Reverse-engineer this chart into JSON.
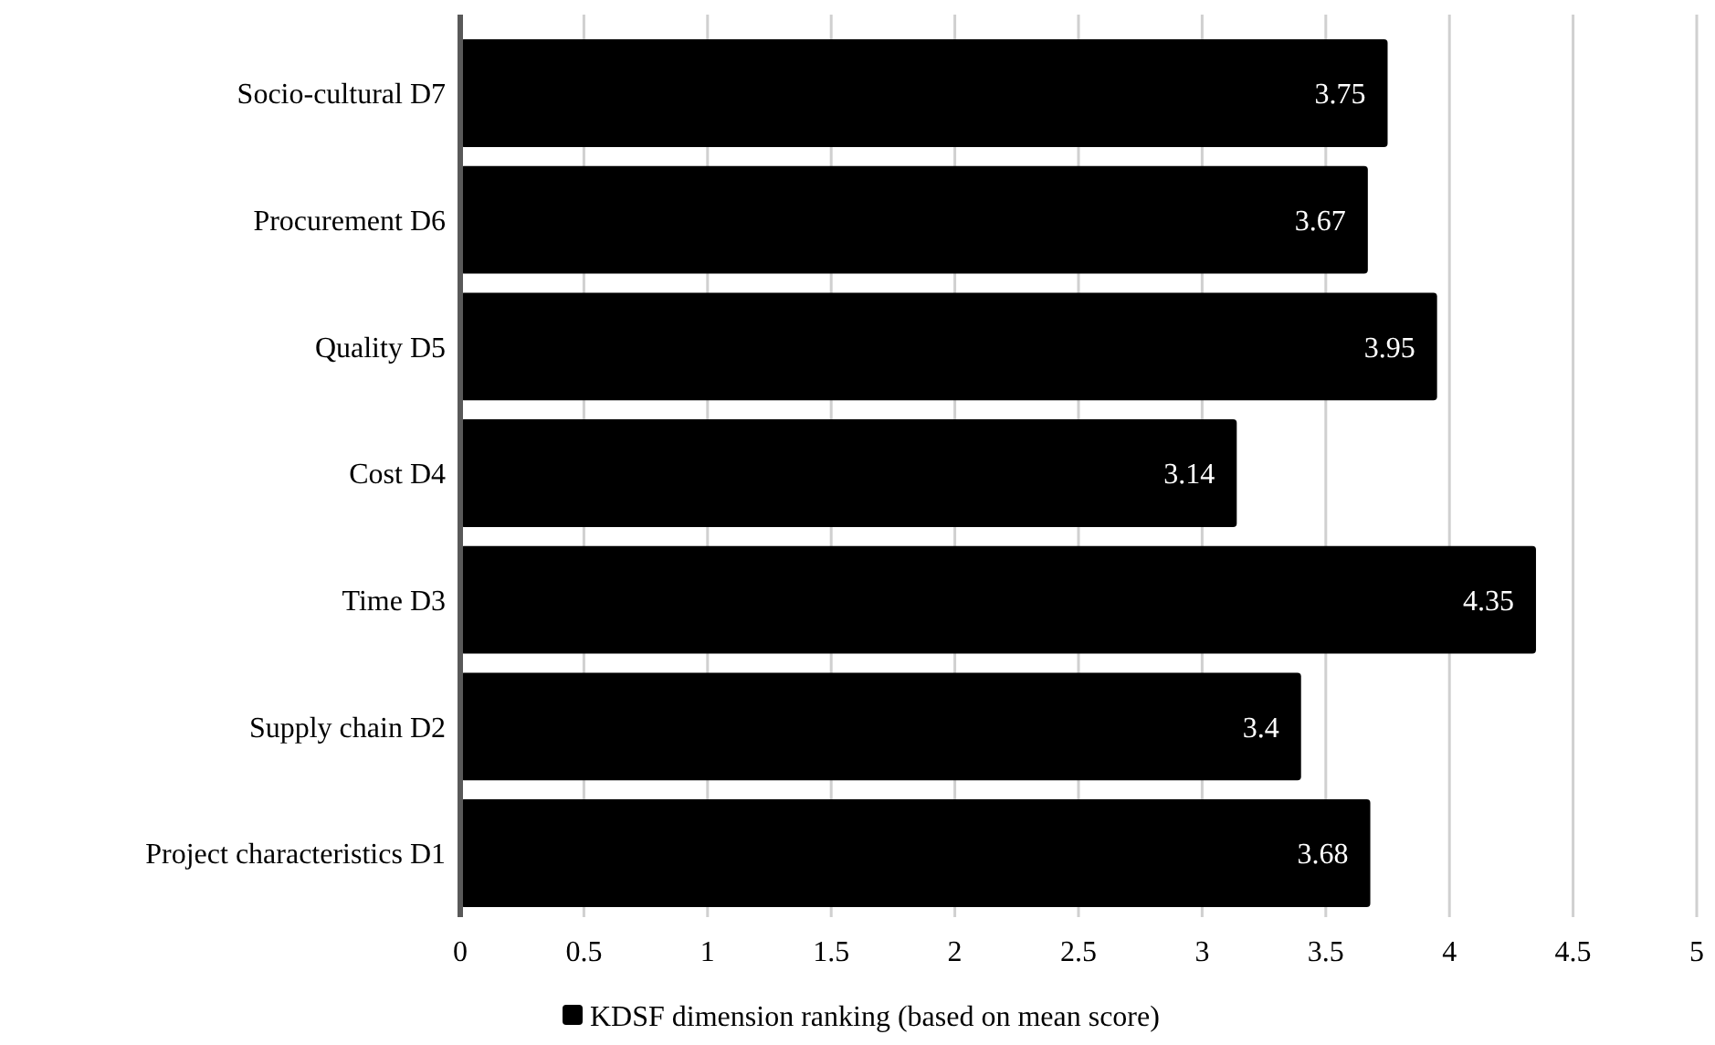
{
  "chart_data": {
    "type": "bar",
    "orientation": "horizontal",
    "categories": [
      "Socio-cultural D7",
      "Procurement D6",
      "Quality D5",
      "Cost D4",
      "Time D3",
      "Supply chain D2",
      "Project characteristics D1"
    ],
    "series": [
      {
        "name": "KDSF dimension ranking (based on mean score)",
        "color": "#000000",
        "values": [
          3.75,
          3.67,
          3.95,
          3.14,
          4.35,
          3.4,
          3.68
        ]
      }
    ],
    "xlim": [
      0,
      5
    ],
    "xticks": [
      0,
      0.5,
      1,
      1.5,
      2,
      2.5,
      3,
      3.5,
      4,
      4.5,
      5
    ],
    "grid": "x",
    "legend": "bottom",
    "data_labels": true
  }
}
